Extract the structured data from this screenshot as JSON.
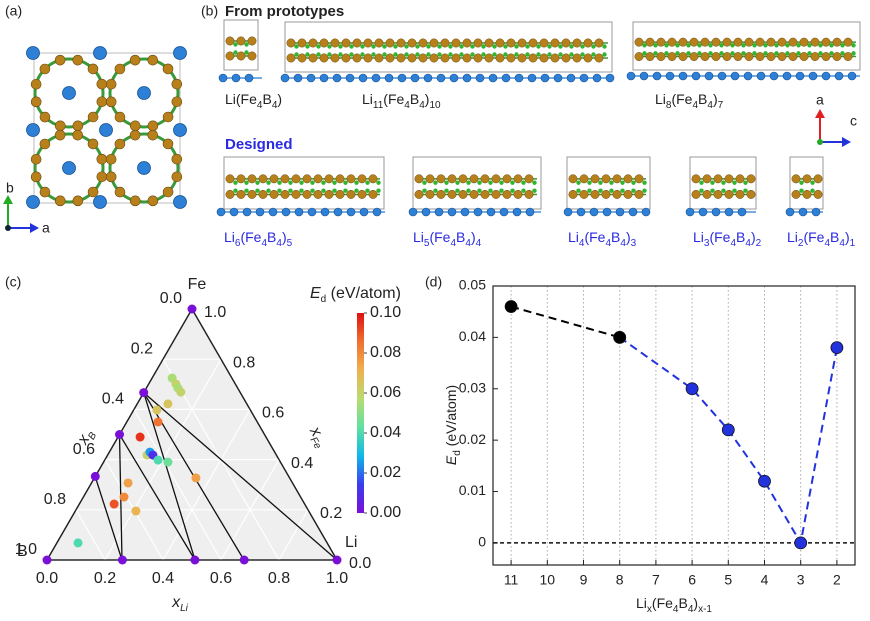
{
  "panel_labels": [
    "(a)",
    "(b)",
    "(c)",
    "(d)"
  ],
  "panel_a": {
    "axes": [
      "b",
      "a"
    ]
  },
  "panel_b": {
    "prototypes_title": "From prototypes",
    "designed_title": "Designed",
    "prototypes": [
      [
        {
          "text": "Li(Fe"
        },
        {
          "sub": "4"
        },
        {
          "text": "B"
        },
        {
          "sub": "4"
        },
        {
          "text": ")"
        }
      ],
      [
        {
          "text": "Li"
        },
        {
          "sub": "11"
        },
        {
          "text": "(Fe"
        },
        {
          "sub": "4"
        },
        {
          "text": "B"
        },
        {
          "sub": "4"
        },
        {
          "text": ")"
        },
        {
          "sub": "10"
        }
      ],
      [
        {
          "text": "Li"
        },
        {
          "sub": "8"
        },
        {
          "text": "(Fe"
        },
        {
          "sub": "4"
        },
        {
          "text": "B"
        },
        {
          "sub": "4"
        },
        {
          "text": ")"
        },
        {
          "sub": "7"
        }
      ]
    ],
    "designed": [
      [
        {
          "text": "Li"
        },
        {
          "sub": "6"
        },
        {
          "text": "(Fe"
        },
        {
          "sub": "4"
        },
        {
          "text": "B"
        },
        {
          "sub": "4"
        },
        {
          "text": ")"
        },
        {
          "sub": "5"
        }
      ],
      [
        {
          "text": "Li"
        },
        {
          "sub": "5"
        },
        {
          "text": "(Fe"
        },
        {
          "sub": "4"
        },
        {
          "text": "B"
        },
        {
          "sub": "4"
        },
        {
          "text": ")"
        },
        {
          "sub": "4"
        }
      ],
      [
        {
          "text": "Li"
        },
        {
          "sub": "4"
        },
        {
          "text": "(Fe"
        },
        {
          "sub": "4"
        },
        {
          "text": "B"
        },
        {
          "sub": "4"
        },
        {
          "text": ")"
        },
        {
          "sub": "3"
        }
      ],
      [
        {
          "text": "Li"
        },
        {
          "sub": "3"
        },
        {
          "text": "(Fe"
        },
        {
          "sub": "4"
        },
        {
          "text": "B"
        },
        {
          "sub": "4"
        },
        {
          "text": ")"
        },
        {
          "sub": "2"
        }
      ],
      [
        {
          "text": "Li"
        },
        {
          "sub": "2"
        },
        {
          "text": "(Fe"
        },
        {
          "sub": "4"
        },
        {
          "text": "B"
        },
        {
          "sub": "4"
        },
        {
          "text": ")"
        },
        {
          "sub": "1"
        }
      ]
    ],
    "axes": [
      "a",
      "c"
    ]
  },
  "chart_data": [
    {
      "type": "ternary",
      "corners": {
        "top": "Fe",
        "left": "B",
        "right": "Li"
      },
      "axes": {
        "bottom": {
          "label": [
            {
              "text": "x"
            },
            {
              "sub": "Li"
            }
          ],
          "ticks": [
            {
              "value": 0,
              "label": "0.0"
            },
            {
              "value": 0.2,
              "label": "0.2"
            },
            {
              "value": 0.4,
              "label": "0.4"
            },
            {
              "value": 0.6,
              "label": "0.6"
            },
            {
              "value": 0.8,
              "label": "0.8"
            },
            {
              "value": 1,
              "label": "1.0"
            }
          ]
        },
        "left": {
          "label": [
            {
              "text": "x"
            },
            {
              "sub": "B"
            }
          ],
          "ticks": [
            {
              "value": 0,
              "label": "0.0"
            },
            {
              "value": 0.2,
              "label": "0.2"
            },
            {
              "value": 0.4,
              "label": "0.4"
            },
            {
              "value": 0.6,
              "label": "0.6"
            },
            {
              "value": 0.8,
              "label": "0.8"
            },
            {
              "value": 1,
              "label": "1.0"
            }
          ]
        },
        "right": {
          "label": [
            {
              "text": "x"
            },
            {
              "sub": "Fe"
            }
          ],
          "ticks": [
            {
              "value": 0,
              "label": "0.0"
            },
            {
              "value": 0.2,
              "label": "0.2"
            },
            {
              "value": 0.4,
              "label": "0.4"
            },
            {
              "value": 0.6,
              "label": "0.6"
            },
            {
              "value": 0.8,
              "label": "0.8"
            },
            {
              "value": 1,
              "label": "1.0"
            }
          ]
        }
      },
      "points": {
        "x_li": [
          0,
          0,
          1,
          0,
          0,
          0,
          0.26,
          0.51,
          0.68,
          0.069,
          0.094,
          0.109,
          0.127,
          0.106,
          0.08,
          0.108,
          0.076,
          0.136,
          0.14,
          0.156,
          0.184,
          0.222,
          0.35,
          0.126,
          0.14,
          0.12,
          0.209,
          0.073
        ],
        "x_fe": [
          1,
          0,
          0,
          0.333,
          0.5,
          0.667,
          0,
          0,
          0,
          0.725,
          0.701,
          0.685,
          0.669,
          0.622,
          0.598,
          0.55,
          0.49,
          0.418,
          0.43,
          0.418,
          0.398,
          0.39,
          0.327,
          0.307,
          0.251,
          0.223,
          0.195,
          0.068
        ],
        "values": [
          0,
          0,
          0,
          0,
          0,
          0,
          0,
          0,
          0,
          0.055,
          0.06,
          0.055,
          0.06,
          0.065,
          0.065,
          0.085,
          0.095,
          0.06,
          0.025,
          0.01,
          0.04,
          0.045,
          0.075,
          0.075,
          0.08,
          0.09,
          0.07,
          0.04
        ]
      },
      "colorbar": {
        "title": [
          {
            "text": "E"
          },
          {
            "sub": "d"
          },
          {
            "text": " (eV/atom)"
          }
        ],
        "lim": [
          0,
          0.1
        ],
        "ticks": [
          {
            "value": 0,
            "label": "0.00"
          },
          {
            "value": 0.02,
            "label": "0.02"
          },
          {
            "value": 0.04,
            "label": "0.04"
          },
          {
            "value": 0.06,
            "label": "0.06"
          },
          {
            "value": 0.08,
            "label": "0.08"
          },
          {
            "value": 0.1,
            "label": "0.10"
          }
        ],
        "colors": [
          "#7a10d8",
          "#3a3cf0",
          "#10b8e8",
          "#60e0a0",
          "#b8dc70",
          "#f0b050",
          "#f07030",
          "#e01010"
        ]
      }
    },
    {
      "type": "line",
      "xlabel": [
        {
          "text": "Li"
        },
        {
          "sub": "x"
        },
        {
          "text": "(Fe"
        },
        {
          "sub": "4"
        },
        {
          "text": "B"
        },
        {
          "sub": "4"
        },
        {
          "text": ")"
        },
        {
          "sub": "x-1"
        }
      ],
      "ylabel": [
        {
          "text": "E"
        },
        {
          "sub": "d"
        },
        {
          "text": " (eV/atom)"
        }
      ],
      "x": [
        11,
        8,
        6,
        5,
        4,
        3,
        2
      ],
      "series": [
        {
          "color": "#2233dd",
          "values": [
            null,
            0.04,
            0.03,
            0.022,
            0.012,
            0,
            0.038
          ]
        },
        {
          "color": "#000000",
          "values": [
            0.046,
            0.04,
            null,
            null,
            null,
            null,
            null
          ]
        }
      ],
      "xlim": [
        11.5,
        1.5
      ],
      "xticks": [
        11,
        10,
        9,
        8,
        7,
        6,
        5,
        4,
        3,
        2
      ],
      "ylim": [
        -0.0043,
        0.05
      ],
      "yticks": [
        0,
        0.01,
        0.02,
        0.03,
        0.04,
        0.05
      ],
      "grid": "x",
      "hline": 0
    }
  ]
}
